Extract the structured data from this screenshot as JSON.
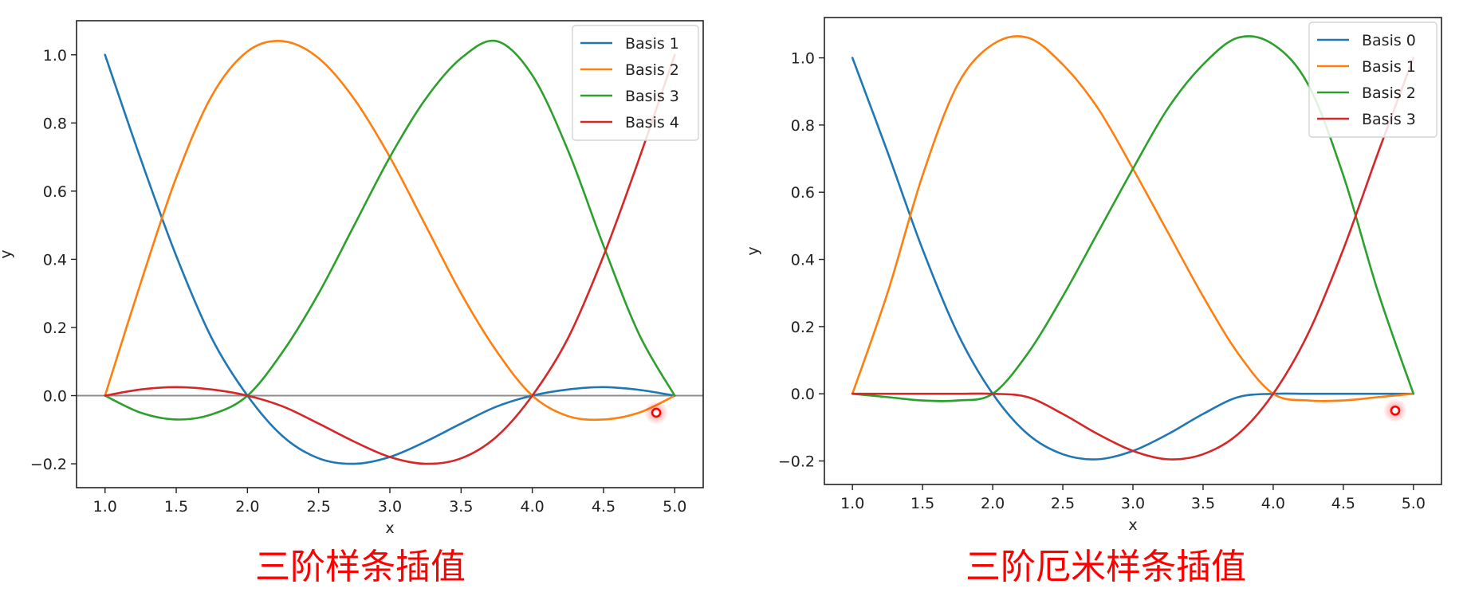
{
  "chart_data": [
    {
      "type": "line",
      "caption": "三阶样条插值",
      "xlabel": "x",
      "ylabel": "y",
      "xlim": [
        0.8,
        5.2
      ],
      "ylim": [
        -0.27,
        1.1
      ],
      "xticks": [
        "1.0",
        "1.5",
        "2.0",
        "2.5",
        "3.0",
        "3.5",
        "4.0",
        "4.5",
        "5.0"
      ],
      "yticks": [
        "−0.2",
        "0.0",
        "0.2",
        "0.4",
        "0.6",
        "0.8",
        "1.0"
      ],
      "grid": false,
      "zero_line": true,
      "legend_position": "top-right",
      "marker": {
        "x": 4.87,
        "y": -0.05,
        "color": "#ff0000"
      },
      "x": [
        1.0,
        1.25,
        1.5,
        1.75,
        2.0,
        2.25,
        2.5,
        2.75,
        3.0,
        3.25,
        3.5,
        3.75,
        4.0,
        4.25,
        4.5,
        4.75,
        5.0
      ],
      "series": [
        {
          "name": "Basis 1",
          "color": "#1f77b4",
          "values": [
            1.0,
            0.695,
            0.41,
            0.168,
            0.0,
            -0.12,
            -0.184,
            -0.2,
            -0.18,
            -0.135,
            -0.082,
            -0.032,
            0.0,
            0.018,
            0.025,
            0.017,
            0.0
          ]
        },
        {
          "name": "Basis 2",
          "color": "#ff7f0e",
          "values": [
            0.0,
            0.33,
            0.64,
            0.88,
            1.01,
            1.04,
            0.99,
            0.87,
            0.7,
            0.5,
            0.3,
            0.13,
            0.0,
            -0.06,
            -0.07,
            -0.05,
            0.0
          ]
        },
        {
          "name": "Basis 3",
          "color": "#2ca02c",
          "values": [
            0.0,
            -0.05,
            -0.07,
            -0.055,
            0.0,
            0.13,
            0.3,
            0.5,
            0.7,
            0.87,
            0.99,
            1.04,
            0.94,
            0.72,
            0.44,
            0.18,
            0.0
          ]
        },
        {
          "name": "Basis 4",
          "color": "#d62728",
          "values": [
            0.0,
            0.018,
            0.025,
            0.018,
            0.0,
            -0.032,
            -0.082,
            -0.135,
            -0.18,
            -0.2,
            -0.184,
            -0.12,
            0.0,
            0.168,
            0.41,
            0.695,
            1.0
          ]
        }
      ]
    },
    {
      "type": "line",
      "caption": "三阶厄米样条插值",
      "xlabel": "x",
      "ylabel": "y",
      "xlim": [
        0.8,
        5.2
      ],
      "ylim": [
        -0.27,
        1.12
      ],
      "xticks": [
        "1.0",
        "1.5",
        "2.0",
        "2.5",
        "3.0",
        "3.5",
        "4.0",
        "4.5",
        "5.0"
      ],
      "yticks": [
        "−0.2",
        "0.0",
        "0.2",
        "0.4",
        "0.6",
        "0.8",
        "1.0"
      ],
      "grid": false,
      "zero_line": false,
      "legend_position": "top-right",
      "marker": {
        "x": 4.87,
        "y": -0.05,
        "color": "#ff0000"
      },
      "x": [
        1.0,
        1.25,
        1.5,
        1.75,
        2.0,
        2.25,
        2.5,
        2.75,
        3.0,
        3.25,
        3.5,
        3.75,
        4.0,
        4.25,
        4.5,
        4.75,
        5.0
      ],
      "series": [
        {
          "name": "Basis 0",
          "color": "#1f77b4",
          "values": [
            1.0,
            0.72,
            0.43,
            0.18,
            0.0,
            -0.12,
            -0.18,
            -0.195,
            -0.17,
            -0.12,
            -0.06,
            -0.01,
            0.0,
            0.0,
            0.0,
            0.0,
            0.0
          ]
        },
        {
          "name": "Basis 1",
          "color": "#ff7f0e",
          "values": [
            0.0,
            0.3,
            0.65,
            0.92,
            1.04,
            1.06,
            0.98,
            0.85,
            0.67,
            0.48,
            0.29,
            0.12,
            0.0,
            -0.02,
            -0.02,
            -0.01,
            0.0
          ]
        },
        {
          "name": "Basis 2",
          "color": "#2ca02c",
          "values": [
            0.0,
            -0.01,
            -0.02,
            -0.02,
            0.0,
            0.12,
            0.29,
            0.48,
            0.67,
            0.85,
            0.98,
            1.06,
            1.04,
            0.92,
            0.65,
            0.3,
            0.0
          ]
        },
        {
          "name": "Basis 3",
          "color": "#d62728",
          "values": [
            0.0,
            0.0,
            0.0,
            0.0,
            0.0,
            -0.01,
            -0.06,
            -0.12,
            -0.17,
            -0.195,
            -0.18,
            -0.12,
            0.0,
            0.18,
            0.43,
            0.72,
            1.0
          ]
        }
      ]
    }
  ]
}
